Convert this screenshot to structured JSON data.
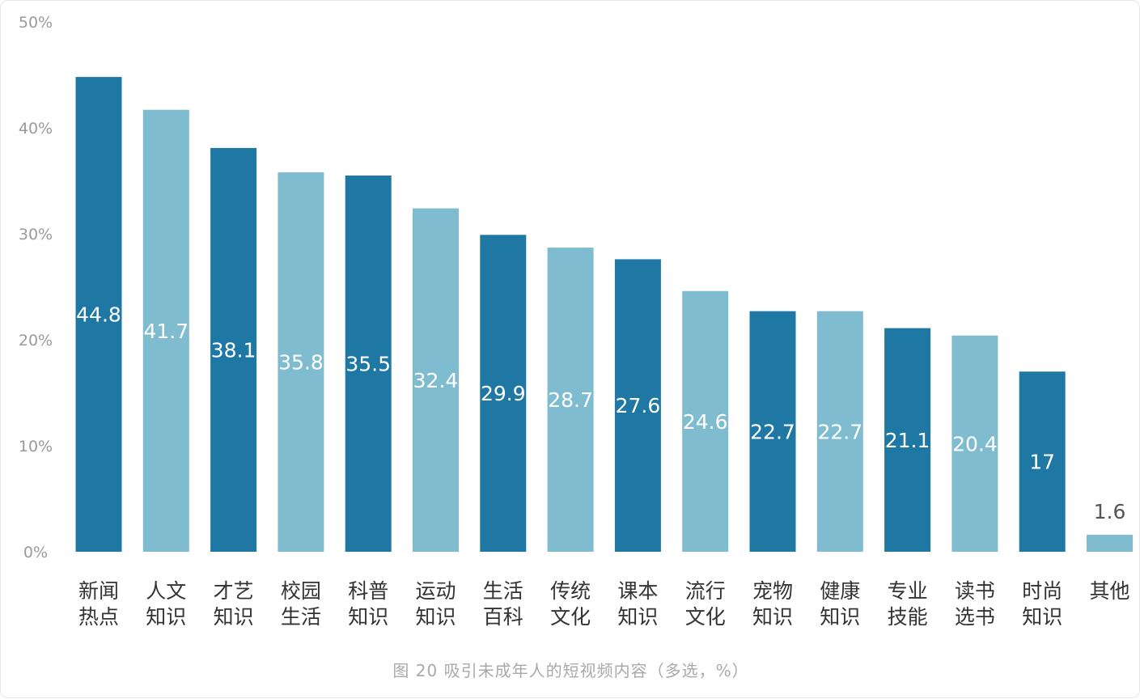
{
  "caption": "图 20   吸引未成年人的短视频内容（多选，%）",
  "chart_data": {
    "type": "bar",
    "title": "",
    "xlabel": "",
    "ylabel": "",
    "ylim": [
      0,
      50
    ],
    "yticks": [
      0,
      10,
      20,
      30,
      40,
      50
    ],
    "ytick_labels": [
      "0%",
      "10%",
      "20%",
      "30%",
      "40%",
      "50%"
    ],
    "grid": false,
    "legend": "none",
    "categories": [
      [
        "新闻",
        "热点"
      ],
      [
        "人文",
        "知识"
      ],
      [
        "才艺",
        "知识"
      ],
      [
        "校园",
        "生活"
      ],
      [
        "科普",
        "知识"
      ],
      [
        "运动",
        "知识"
      ],
      [
        "生活",
        "百科"
      ],
      [
        "传统",
        "文化"
      ],
      [
        "课本",
        "知识"
      ],
      [
        "流行",
        "文化"
      ],
      [
        "宠物",
        "知识"
      ],
      [
        "健康",
        "知识"
      ],
      [
        "专业",
        "技能"
      ],
      [
        "读书",
        "选书"
      ],
      [
        "时尚",
        "知识"
      ],
      [
        "其他"
      ]
    ],
    "values": [
      44.8,
      41.7,
      38.1,
      35.8,
      35.5,
      32.4,
      29.9,
      28.7,
      27.6,
      24.6,
      22.7,
      22.7,
      21.1,
      20.4,
      17,
      1.6
    ],
    "value_labels": [
      "44.8",
      "41.7",
      "38.1",
      "35.8",
      "35.5",
      "32.4",
      "29.9",
      "28.7",
      "27.6",
      "24.6",
      "22.7",
      "22.7",
      "21.1",
      "20.4",
      "17",
      "1.6"
    ],
    "colors": [
      "#1f77a4",
      "#80bcd0",
      "#1f77a4",
      "#80bcd0",
      "#1f77a4",
      "#80bcd0",
      "#1f77a4",
      "#80bcd0",
      "#1f77a4",
      "#80bcd0",
      "#1f77a4",
      "#80bcd0",
      "#1f77a4",
      "#80bcd0",
      "#1f77a4",
      "#80bcd0"
    ]
  }
}
